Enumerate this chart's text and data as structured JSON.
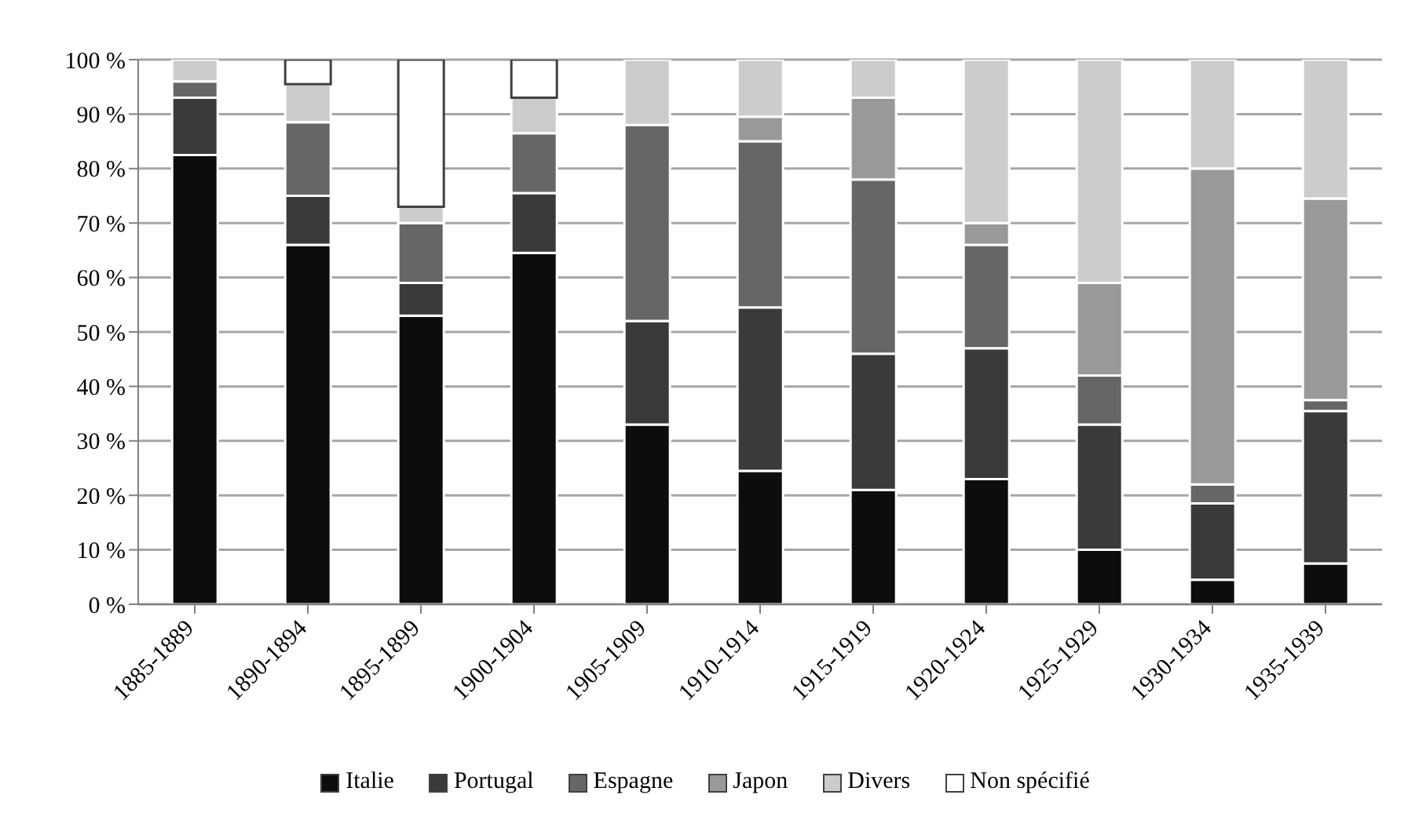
{
  "chart_data": {
    "type": "bar",
    "stacked": true,
    "categories": [
      "1885-1889",
      "1890-1894",
      "1895-1899",
      "1900-1904",
      "1905-1909",
      "1910-1914",
      "1915-1919",
      "1920-1924",
      "1925-1929",
      "1930-1934",
      "1935-1939"
    ],
    "series": [
      {
        "name": "Italie",
        "color": "#0d0d0d",
        "values": [
          82.5,
          66,
          53,
          64.5,
          33,
          24.5,
          21,
          23,
          10,
          4.5,
          7.5
        ]
      },
      {
        "name": "Portugal",
        "color": "#3a3a3a",
        "values": [
          10.5,
          9,
          6,
          11,
          19,
          30,
          25,
          24,
          23,
          14,
          28
        ]
      },
      {
        "name": "Espagne",
        "color": "#666666",
        "values": [
          3,
          13.5,
          11,
          11,
          36,
          30.5,
          32,
          19,
          9,
          3.5,
          2
        ]
      },
      {
        "name": "Japon",
        "color": "#999999",
        "values": [
          0,
          0,
          0,
          0,
          0,
          4.5,
          15,
          4,
          17,
          58,
          37
        ]
      },
      {
        "name": "Divers",
        "color": "#cccccc",
        "values": [
          4,
          7,
          3,
          6.5,
          12,
          10.5,
          7,
          30,
          41,
          20,
          25.5
        ]
      },
      {
        "name": "Non spécifié",
        "color": "#ffffff",
        "values": [
          0,
          4.5,
          27,
          7,
          0,
          0,
          0,
          0,
          0,
          0,
          0
        ]
      }
    ],
    "ylim": [
      0,
      100
    ],
    "yticks": [
      {
        "value": 0,
        "label": "0 %"
      },
      {
        "value": 10,
        "label": "10 %"
      },
      {
        "value": 20,
        "label": "20 %"
      },
      {
        "value": 30,
        "label": "30 %"
      },
      {
        "value": 40,
        "label": "40 %"
      },
      {
        "value": 50,
        "label": "50 %"
      },
      {
        "value": 60,
        "label": "60 %"
      },
      {
        "value": 70,
        "label": "70 %"
      },
      {
        "value": 80,
        "label": "80 %"
      },
      {
        "value": 90,
        "label": "90 %"
      },
      {
        "value": 100,
        "label": "100 %"
      }
    ],
    "grid": "y",
    "legend": "bottom"
  }
}
